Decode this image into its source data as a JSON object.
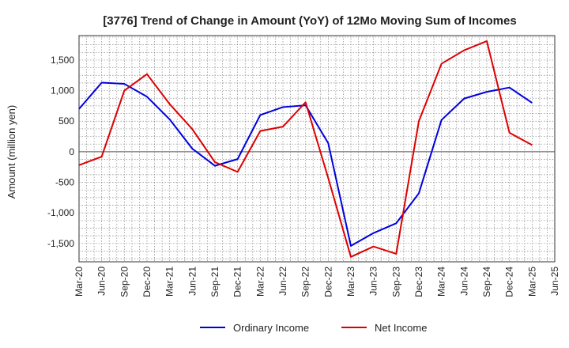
{
  "chart_data": {
    "type": "line",
    "title": "[3776]  Trend of Change in Amount (YoY) of 12Mo Moving Sum of Incomes",
    "ylabel": "Amount (million yen)",
    "xlabel": "",
    "ylim": [
      -1800,
      1900
    ],
    "yticks": [
      -1500,
      -1000,
      -500,
      0,
      500,
      1000,
      1500
    ],
    "ytick_labels": [
      "-1,500",
      "-1,000",
      "-500",
      "0",
      "500",
      "1,000",
      "1,500"
    ],
    "categories": [
      "Mar-20",
      "Jun-20",
      "Sep-20",
      "Dec-20",
      "Mar-21",
      "Jun-21",
      "Sep-21",
      "Dec-21",
      "Mar-22",
      "Jun-22",
      "Sep-22",
      "Dec-22",
      "Mar-23",
      "Jun-23",
      "Sep-23",
      "Dec-23",
      "Mar-24",
      "Jun-24",
      "Sep-24",
      "Dec-24",
      "Mar-25",
      "Jun-25"
    ],
    "grid": true,
    "legend_position": "bottom",
    "series": [
      {
        "name": "Ordinary Income",
        "color": "#0000dd",
        "values": [
          700,
          1130,
          1110,
          900,
          530,
          50,
          -230,
          -120,
          600,
          730,
          760,
          140,
          -1540,
          -1330,
          -1170,
          -680,
          520,
          870,
          980,
          1050,
          800,
          null
        ]
      },
      {
        "name": "Net Income",
        "color": "#dd0000",
        "values": [
          -220,
          -80,
          1000,
          1270,
          780,
          370,
          -170,
          -330,
          340,
          410,
          810,
          -430,
          -1720,
          -1550,
          -1670,
          500,
          1440,
          1660,
          1810,
          310,
          110,
          null
        ]
      }
    ]
  }
}
